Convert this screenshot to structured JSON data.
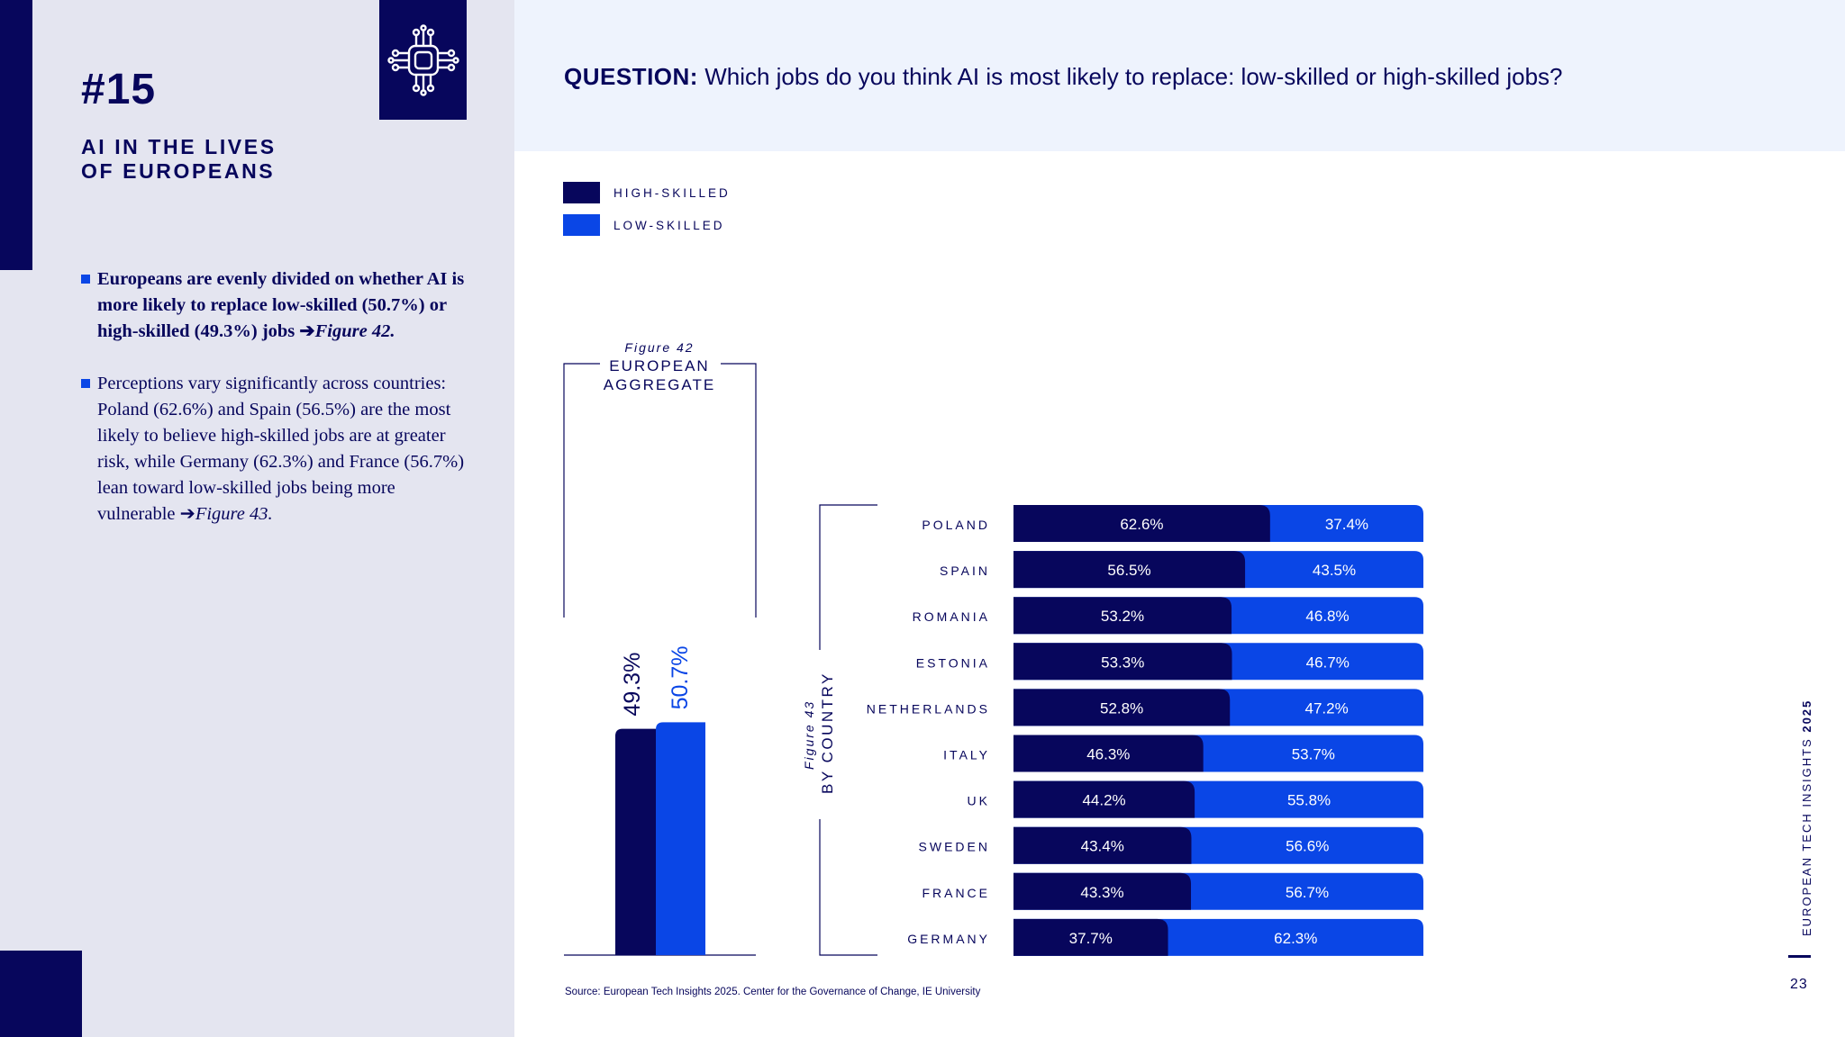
{
  "section": {
    "number": "#15",
    "title_line1": "AI IN THE LIVES",
    "title_line2": "OF EUROPEANS"
  },
  "bullets": [
    {
      "text": "Europeans are evenly divided on whether AI is more likely to replace low-skilled (50.7%) or high-skilled (49.3%) jobs ",
      "ref": "Figure 42."
    },
    {
      "text": "Perceptions vary significantly across countries: Poland (62.6%) and Spain (56.5%) are the most likely to believe high-skilled jobs are at greater risk, while Germany (62.3%) and France (56.7%) lean toward low-skilled jobs being more vulnerable ",
      "ref": "Figure 43."
    }
  ],
  "question": {
    "prefix": "QUESTION:",
    "text": "Which jobs do you think AI is most likely to replace: low-skilled or high-skilled jobs?"
  },
  "legend": [
    {
      "label": "HIGH-SKILLED",
      "color": "#07065c"
    },
    {
      "label": "LOW-SKILLED",
      "color": "#0a46e6"
    }
  ],
  "icons": {
    "chip": "chip-circuit-icon",
    "arrow": "arrow-right-icon"
  },
  "source": "Source: European Tech Insights 2025. Center for the Governance of Change, IE University",
  "side_title": {
    "text": "EUROPEAN TECH INSIGHTS ",
    "year": "2025"
  },
  "page_number": "23",
  "chart_data": [
    {
      "type": "bar",
      "figure": "Figure 42",
      "title_line1": "EUROPEAN",
      "title_line2": "AGGREGATE",
      "series": [
        {
          "name": "HIGH-SKILLED",
          "values": [
            49.3
          ],
          "label": "49.3%"
        },
        {
          "name": "LOW-SKILLED",
          "values": [
            50.7
          ],
          "label": "50.7%"
        }
      ],
      "categories": [
        "EUROPEAN AGGREGATE"
      ]
    },
    {
      "type": "bar",
      "orientation": "horizontal-stacked",
      "figure": "Figure 43",
      "title": "BY COUNTRY",
      "categories": [
        "POLAND",
        "SPAIN",
        "ROMANIA",
        "ESTONIA",
        "NETHERLANDS",
        "ITALY",
        "UK",
        "SWEDEN",
        "FRANCE",
        "GERMANY"
      ],
      "series": [
        {
          "name": "HIGH-SKILLED",
          "values": [
            62.6,
            56.5,
            53.2,
            53.3,
            52.8,
            46.3,
            44.2,
            43.4,
            43.3,
            37.7
          ],
          "labels": [
            "62.6%",
            "56.5%",
            "53.2%",
            "53.3%",
            "52.8%",
            "46.3%",
            "44.2%",
            "43.4%",
            "43.3%",
            "37.7%"
          ]
        },
        {
          "name": "LOW-SKILLED",
          "values": [
            37.4,
            43.5,
            46.8,
            46.7,
            47.2,
            53.7,
            55.8,
            56.6,
            56.7,
            62.3
          ],
          "labels": [
            "37.4%",
            "43.5%",
            "46.8%",
            "46.7%",
            "47.2%",
            "53.7%",
            "55.8%",
            "56.6%",
            "56.7%",
            "62.3%"
          ]
        }
      ],
      "colors": {
        "high": "#07065c",
        "low": "#0a46e6"
      }
    }
  ]
}
